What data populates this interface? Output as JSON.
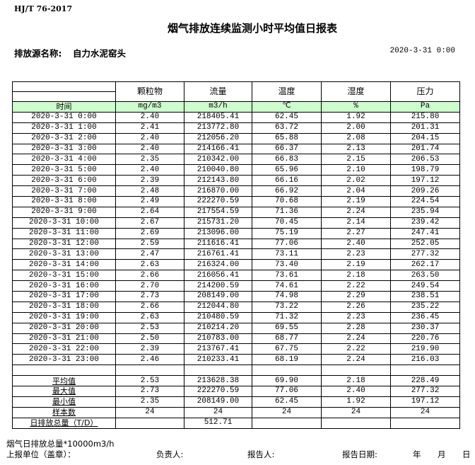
{
  "standard": "HJ/T  76-2017",
  "title": "烟气排放连续监测小时平均值日报表",
  "source_label": "排放源名称:",
  "source_name": "自力水泥窑头",
  "report_datetime": "2020-3-31  0:00",
  "table": {
    "columns": [
      "颗粒物",
      "流量",
      "温度",
      "湿度",
      "压力"
    ],
    "time_header": "时间",
    "units": [
      "mg/m3",
      "m3/h",
      "℃",
      "%",
      "Pa"
    ],
    "header_color": "#ccffcc",
    "rows": [
      [
        "2020-3-31  0:00",
        "2.40",
        "218405.41",
        "62.45",
        "1.92",
        "215.80"
      ],
      [
        "2020-3-31  1:00",
        "2.41",
        "213772.80",
        "63.72",
        "2.00",
        "201.31"
      ],
      [
        "2020-3-31  2:00",
        "2.40",
        "212056.20",
        "65.88",
        "2.08",
        "204.15"
      ],
      [
        "2020-3-31  3:00",
        "2.40",
        "214166.41",
        "66.37",
        "2.13",
        "201.74"
      ],
      [
        "2020-3-31  4:00",
        "2.35",
        "210342.00",
        "66.83",
        "2.15",
        "206.53"
      ],
      [
        "2020-3-31  5:00",
        "2.40",
        "210040.80",
        "65.96",
        "2.10",
        "198.79"
      ],
      [
        "2020-3-31  6:00",
        "2.39",
        "212143.80",
        "66.16",
        "2.02",
        "197.12"
      ],
      [
        "2020-3-31  7:00",
        "2.48",
        "216870.00",
        "66.92",
        "2.04",
        "209.26"
      ],
      [
        "2020-3-31  8:00",
        "2.49",
        "222270.59",
        "70.68",
        "2.19",
        "224.54"
      ],
      [
        "2020-3-31  9:00",
        "2.64",
        "217554.59",
        "71.36",
        "2.24",
        "235.94"
      ],
      [
        "2020-3-31 10:00",
        "2.67",
        "215731.20",
        "70.45",
        "2.14",
        "239.42"
      ],
      [
        "2020-3-31 11:00",
        "2.69",
        "213096.00",
        "75.19",
        "2.27",
        "247.41"
      ],
      [
        "2020-3-31 12:00",
        "2.59",
        "211616.41",
        "77.06",
        "2.40",
        "252.05"
      ],
      [
        "2020-3-31 13:00",
        "2.47",
        "216761.41",
        "73.11",
        "2.23",
        "277.32"
      ],
      [
        "2020-3-31 14:00",
        "2.63",
        "216324.00",
        "73.40",
        "2.19",
        "262.17"
      ],
      [
        "2020-3-31 15:00",
        "2.66",
        "216056.41",
        "73.61",
        "2.18",
        "263.50"
      ],
      [
        "2020-3-31 16:00",
        "2.70",
        "214200.59",
        "74.61",
        "2.22",
        "249.54"
      ],
      [
        "2020-3-31 17:00",
        "2.73",
        "208149.00",
        "74.98",
        "2.29",
        "238.51"
      ],
      [
        "2020-3-31 18:00",
        "2.66",
        "212044.80",
        "73.22",
        "2.26",
        "235.22"
      ],
      [
        "2020-3-31 19:00",
        "2.63",
        "210480.59",
        "71.32",
        "2.23",
        "236.45"
      ],
      [
        "2020-3-31 20:00",
        "2.53",
        "210214.20",
        "69.55",
        "2.28",
        "230.37"
      ],
      [
        "2020-3-31 21:00",
        "2.50",
        "210783.00",
        "68.77",
        "2.24",
        "220.76"
      ],
      [
        "2020-3-31 22:00",
        "2.39",
        "213767.41",
        "67.75",
        "2.22",
        "219.90"
      ],
      [
        "2020-3-31 23:00",
        "2.46",
        "210233.41",
        "68.19",
        "2.24",
        "216.03"
      ]
    ],
    "summary": [
      [
        "平均值",
        "2.53",
        "213628.38",
        "69.90",
        "2.18",
        "228.49"
      ],
      [
        "最大值",
        "2.73",
        "222270.59",
        "77.06",
        "2.40",
        "277.32"
      ],
      [
        "最小值",
        "2.35",
        "208149.00",
        "62.45",
        "1.92",
        "197.12"
      ],
      [
        "样本数",
        "24",
        "24",
        "24",
        "24",
        "24"
      ],
      [
        "日排放总量（T/D）",
        "",
        "512.71",
        "",
        "",
        ""
      ]
    ]
  },
  "footer": {
    "note": "烟气日排放总量*10000m3/h",
    "unit_label": "上报单位（盖章）：",
    "responsible_label": "负责人:",
    "reporter_label": "报告人:",
    "report_date_label": "报告日期:",
    "year": "年",
    "month": "月",
    "day": "日"
  }
}
